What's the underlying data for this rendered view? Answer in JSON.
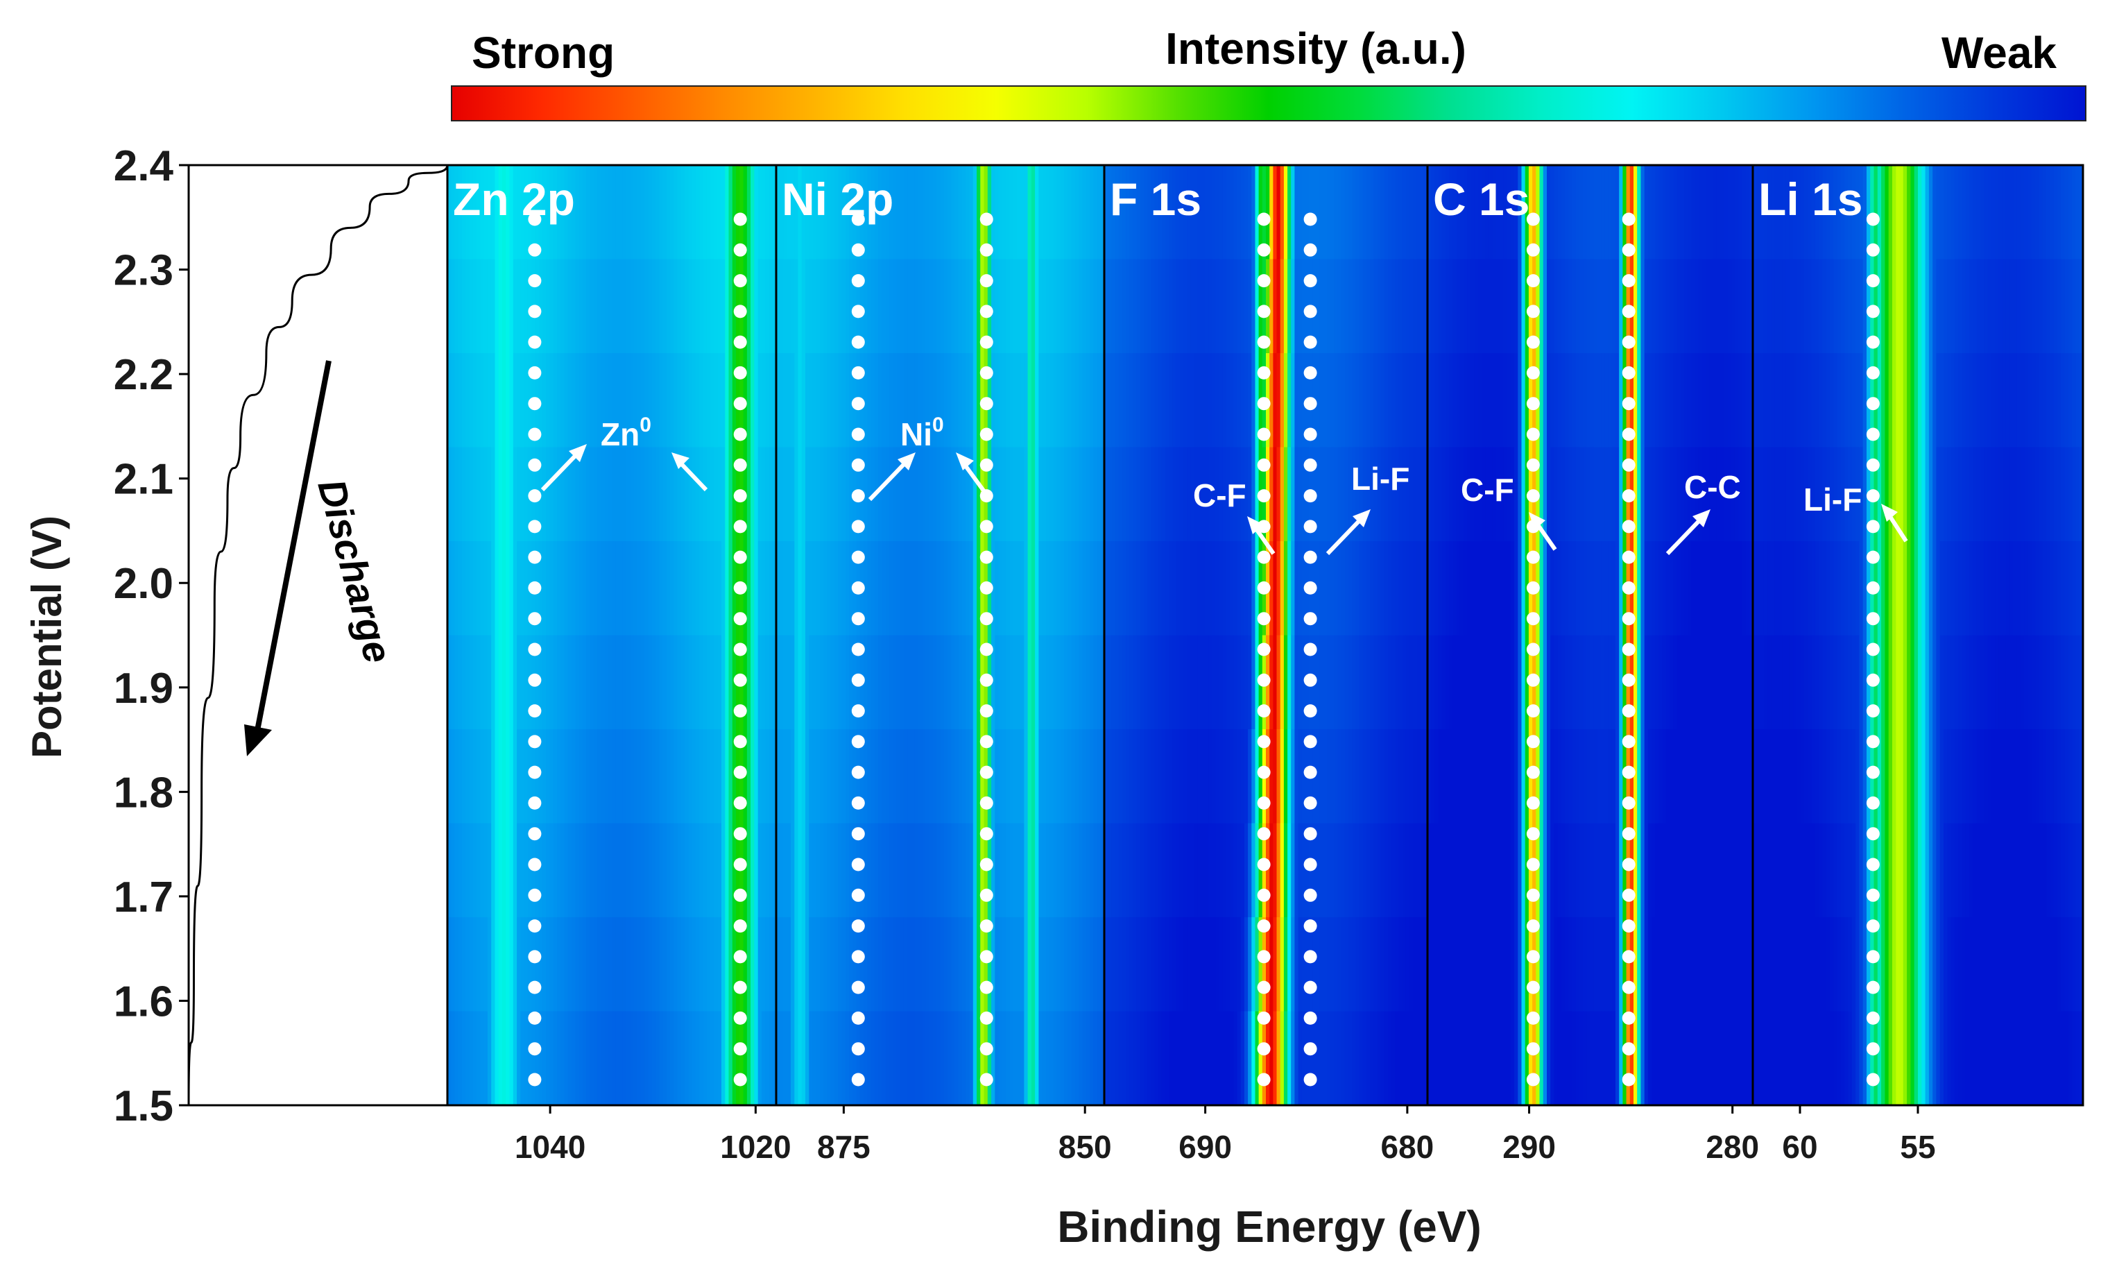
{
  "chart_data": {
    "type": "heatmap",
    "colorbar": {
      "title": "Intensity (a.u.)",
      "left_label": "Strong",
      "right_label": "Weak",
      "colors": [
        "#e60000",
        "#ff2a00",
        "#ff5a00",
        "#ff8a00",
        "#ffb400",
        "#ffe000",
        "#f5ff00",
        "#b8ff00",
        "#55e000",
        "#00d000",
        "#00dc3c",
        "#00e090",
        "#00eec8",
        "#00f4f4",
        "#00c8f0",
        "#0096f0",
        "#0064e6",
        "#0038dc",
        "#0014d2"
      ]
    },
    "y_axis": {
      "label": "Potential (V)",
      "range": [
        1.5,
        2.4
      ],
      "ticks": [
        "1.5",
        "1.6",
        "1.7",
        "1.8",
        "1.9",
        "2.0",
        "2.1",
        "2.2",
        "2.3",
        "2.4"
      ]
    },
    "x_label": "Binding Energy (eV)",
    "discharge_curve": {
      "label": "Discharge",
      "points": [
        [
          0.0,
          1.5
        ],
        [
          0.02,
          1.62
        ],
        [
          0.05,
          1.8
        ],
        [
          0.1,
          1.98
        ],
        [
          0.15,
          2.08
        ],
        [
          0.2,
          2.14
        ],
        [
          0.3,
          2.22
        ],
        [
          0.4,
          2.27
        ],
        [
          0.55,
          2.32
        ],
        [
          0.7,
          2.36
        ],
        [
          0.85,
          2.385
        ],
        [
          1.0,
          2.4
        ]
      ]
    },
    "panels": [
      {
        "title": "Zn 2p",
        "xlim": [
          1050,
          1018
        ],
        "ticks": [
          "1040",
          "1020"
        ],
        "tick_values": [
          1040,
          1020
        ],
        "annotations": [
          {
            "text": "Zn",
            "sup": "0"
          }
        ],
        "peaks": [
          {
            "center": 1021.5,
            "width": 1.8,
            "level": 0.52
          },
          {
            "center": 1044.5,
            "width": 2.0,
            "level": 0.3
          }
        ],
        "dotted_lines": [
          1041.5,
          1021.5
        ],
        "background_level": 0.22
      },
      {
        "title": "Ni 2p",
        "xlim": [
          882,
          848
        ],
        "ticks": [
          "875",
          "850"
        ],
        "tick_values": [
          875,
          850
        ],
        "annotations": [
          {
            "text": "Ni",
            "sup": "0"
          }
        ],
        "peaks": [
          {
            "center": 860.5,
            "width": 0.9,
            "level": 0.62
          },
          {
            "center": 855.5,
            "width": 0.8,
            "level": 0.38
          },
          {
            "center": 879.5,
            "width": 1.5,
            "level": 0.24
          }
        ],
        "dotted_lines": [
          873.5,
          860.2
        ],
        "background_level": 0.2
      },
      {
        "title": "F 1s",
        "xlim": [
          695,
          679
        ],
        "ticks": [
          "690",
          "680"
        ],
        "tick_values": [
          690,
          680
        ],
        "annotations": [
          {
            "text": "C-F"
          },
          {
            "text": "Li-F"
          }
        ],
        "peaks": [
          {
            "center": 686.4,
            "width": 0.6,
            "level": 1.0
          },
          {
            "center": 687.2,
            "width": 0.35,
            "level": 0.5
          }
        ],
        "dotted_lines": [
          687.1,
          684.8
        ],
        "background_level": 0.1
      },
      {
        "title": "C 1s",
        "xlim": [
          295,
          279
        ],
        "ticks": [
          "290",
          "280"
        ],
        "tick_values": [
          290,
          280
        ],
        "annotations": [
          {
            "text": "C-F"
          },
          {
            "text": "C-C"
          }
        ],
        "peaks": [
          {
            "center": 289.8,
            "width": 0.45,
            "level": 0.78
          },
          {
            "center": 285.0,
            "width": 0.4,
            "level": 0.93
          }
        ],
        "dotted_lines": [
          289.8,
          285.1
        ],
        "background_level": 0.06
      },
      {
        "title": "Li 1s",
        "xlim": [
          62,
          48
        ],
        "ticks": [
          "60",
          "55"
        ],
        "tick_values": [
          60,
          55
        ],
        "annotations": [
          {
            "text": "Li-F"
          }
        ],
        "peaks": [
          {
            "center": 55.8,
            "width": 1.1,
            "level": 0.62
          },
          {
            "center": 56.8,
            "width": 0.35,
            "level": 0.42
          }
        ],
        "dotted_lines": [
          56.9
        ],
        "background_level": 0.08
      }
    ]
  }
}
